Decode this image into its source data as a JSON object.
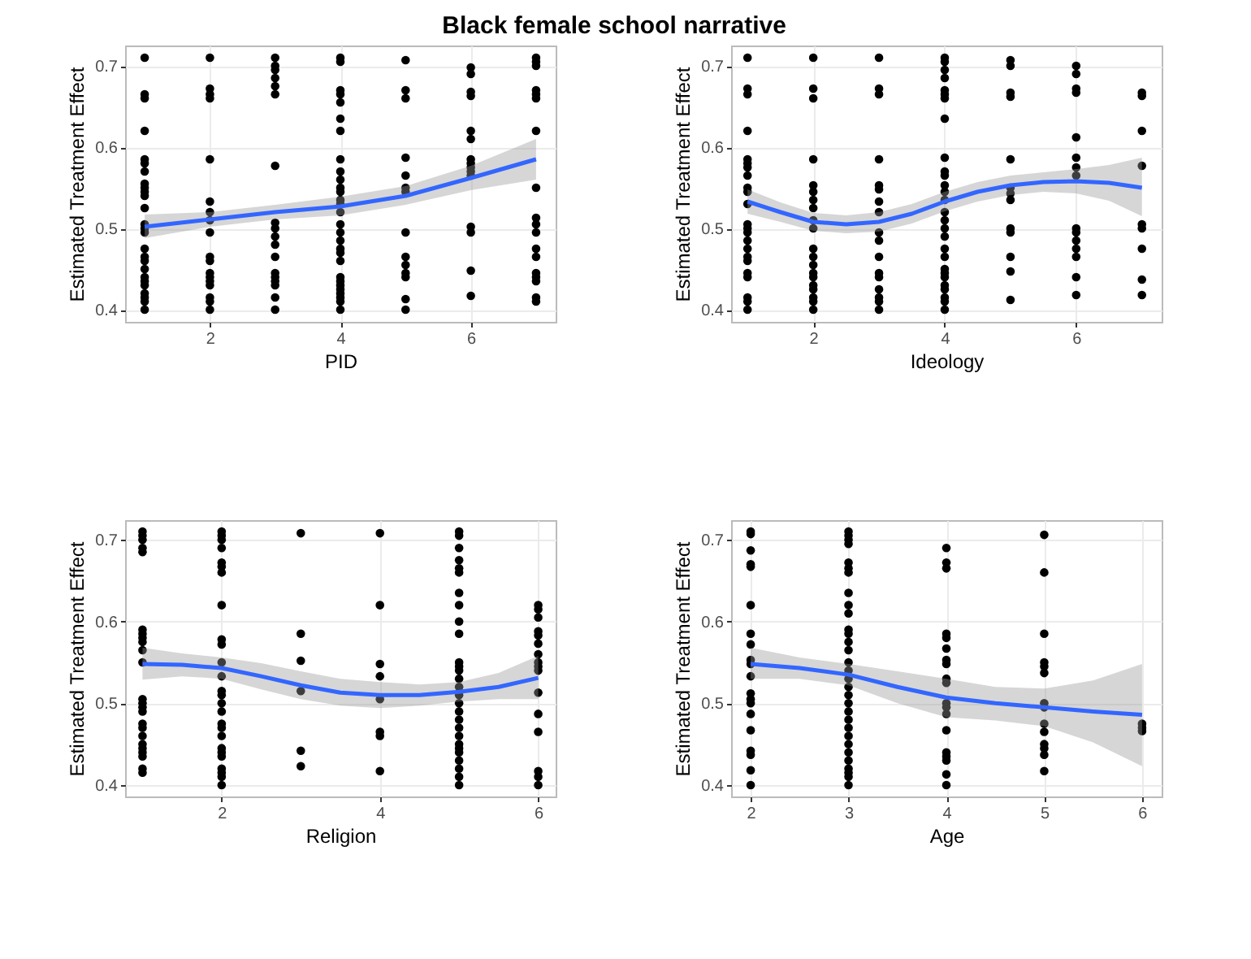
{
  "chart_data": [
    {
      "type": "scatter",
      "title": "Black female school narrative",
      "xlabel": "PID",
      "ylabel": "Estimated Treatment Effect",
      "xlim": [
        0.7,
        7.3
      ],
      "ylim": [
        0.385,
        0.725
      ],
      "xticks": [
        2,
        4,
        6
      ],
      "yticks": [
        0.4,
        0.5,
        0.6,
        0.7
      ],
      "grid": true,
      "series": [
        {
          "color": "#000000",
          "marker": "circle",
          "x": [
            1,
            1,
            1,
            1,
            1,
            1,
            1,
            1,
            1,
            1,
            1,
            1,
            1,
            1,
            1,
            1,
            1,
            1,
            1,
            1,
            1,
            1,
            1,
            1,
            1,
            1,
            2,
            2,
            2,
            2,
            2,
            2,
            2,
            2,
            2,
            2,
            2,
            2,
            2,
            2,
            2,
            2,
            2,
            2,
            3,
            3,
            3,
            3,
            3,
            3,
            3,
            3,
            3,
            3,
            3,
            3,
            3,
            3,
            3,
            3,
            3,
            3,
            4,
            4,
            4,
            4,
            4,
            4,
            4,
            4,
            4,
            4,
            4,
            4,
            4,
            4,
            4,
            4,
            4,
            4,
            4,
            4,
            4,
            4,
            4,
            4,
            4,
            4,
            4,
            4,
            4,
            5,
            5,
            5,
            5,
            5,
            5,
            5,
            5,
            5,
            5,
            5,
            5,
            5,
            5,
            6,
            6,
            6,
            6,
            6,
            6,
            6,
            6,
            6,
            6,
            6,
            6,
            6,
            6,
            6,
            7,
            7,
            7,
            7,
            7,
            7,
            7,
            7,
            7,
            7,
            7,
            7,
            7,
            7,
            7,
            7,
            7,
            7
          ],
          "values": [
            0.71,
            0.665,
            0.66,
            0.62,
            0.585,
            0.58,
            0.57,
            0.555,
            0.55,
            0.545,
            0.54,
            0.525,
            0.505,
            0.5,
            0.495,
            0.475,
            0.465,
            0.46,
            0.45,
            0.44,
            0.435,
            0.43,
            0.42,
            0.415,
            0.41,
            0.4,
            0.71,
            0.672,
            0.665,
            0.66,
            0.585,
            0.533,
            0.52,
            0.51,
            0.495,
            0.465,
            0.46,
            0.445,
            0.44,
            0.435,
            0.43,
            0.415,
            0.41,
            0.4,
            0.71,
            0.7,
            0.695,
            0.685,
            0.675,
            0.665,
            0.577,
            0.507,
            0.5,
            0.49,
            0.48,
            0.465,
            0.445,
            0.44,
            0.435,
            0.43,
            0.415,
            0.4,
            0.71,
            0.705,
            0.67,
            0.665,
            0.655,
            0.635,
            0.62,
            0.585,
            0.57,
            0.56,
            0.55,
            0.545,
            0.535,
            0.53,
            0.52,
            0.505,
            0.495,
            0.485,
            0.475,
            0.47,
            0.46,
            0.44,
            0.435,
            0.43,
            0.425,
            0.42,
            0.415,
            0.41,
            0.4,
            0.707,
            0.67,
            0.66,
            0.587,
            0.565,
            0.55,
            0.545,
            0.495,
            0.465,
            0.455,
            0.445,
            0.44,
            0.413,
            0.4,
            0.698,
            0.69,
            0.668,
            0.663,
            0.62,
            0.61,
            0.585,
            0.58,
            0.575,
            0.57,
            0.565,
            0.502,
            0.495,
            0.448,
            0.417,
            0.71,
            0.705,
            0.7,
            0.67,
            0.665,
            0.66,
            0.62,
            0.55,
            0.513,
            0.505,
            0.495,
            0.475,
            0.465,
            0.445,
            0.44,
            0.435,
            0.415,
            0.41
          ]
        },
        {
          "type": "line",
          "line_style": "solid",
          "color": "#3366ff",
          "x": [
            1,
            2,
            3,
            4,
            5,
            6,
            7
          ],
          "values": [
            0.502,
            0.511,
            0.52,
            0.527,
            0.54,
            0.562,
            0.585
          ],
          "lower": [
            0.488,
            0.502,
            0.511,
            0.516,
            0.529,
            0.547,
            0.56
          ],
          "upper": [
            0.517,
            0.52,
            0.529,
            0.539,
            0.552,
            0.577,
            0.61
          ]
        }
      ]
    },
    {
      "type": "scatter",
      "xlabel": "Ideology",
      "ylabel": "Estimated Treatment Effect",
      "xlim": [
        0.75,
        7.3
      ],
      "ylim": [
        0.385,
        0.725
      ],
      "xticks": [
        2,
        4,
        6
      ],
      "yticks": [
        0.4,
        0.5,
        0.6,
        0.7
      ],
      "grid": true,
      "series": [
        {
          "color": "#000000",
          "marker": "circle",
          "x": [
            1,
            1,
            1,
            1,
            1,
            1,
            1,
            1,
            1,
            1,
            1,
            1,
            1,
            1,
            1,
            1,
            1,
            1,
            1,
            1,
            1,
            1,
            1,
            2,
            2,
            2,
            2,
            2,
            2,
            2,
            2,
            2,
            2,
            2,
            2,
            2,
            2,
            2,
            2,
            2,
            2,
            2,
            2,
            3,
            3,
            3,
            3,
            3,
            3,
            3,
            3,
            3,
            3,
            3,
            3,
            3,
            3,
            3,
            3,
            3,
            4,
            4,
            4,
            4,
            4,
            4,
            4,
            4,
            4,
            4,
            4,
            4,
            4,
            4,
            4,
            4,
            4,
            4,
            4,
            4,
            4,
            4,
            4,
            4,
            4,
            4,
            4,
            4,
            5,
            5,
            5,
            5,
            5,
            5,
            5,
            5,
            5,
            5,
            5,
            5,
            5,
            6,
            6,
            6,
            6,
            6,
            6,
            6,
            6,
            6,
            6,
            6,
            6,
            6,
            6,
            6,
            7,
            7,
            7,
            7,
            7,
            7,
            7,
            7,
            7
          ],
          "values": [
            0.71,
            0.672,
            0.665,
            0.62,
            0.585,
            0.58,
            0.575,
            0.565,
            0.55,
            0.545,
            0.53,
            0.505,
            0.5,
            0.495,
            0.485,
            0.475,
            0.465,
            0.46,
            0.445,
            0.44,
            0.415,
            0.41,
            0.4,
            0.71,
            0.672,
            0.66,
            0.585,
            0.553,
            0.545,
            0.535,
            0.525,
            0.51,
            0.5,
            0.475,
            0.465,
            0.455,
            0.445,
            0.44,
            0.43,
            0.425,
            0.415,
            0.41,
            0.4,
            0.71,
            0.672,
            0.665,
            0.585,
            0.553,
            0.548,
            0.533,
            0.52,
            0.495,
            0.485,
            0.465,
            0.445,
            0.44,
            0.425,
            0.415,
            0.41,
            0.4,
            0.71,
            0.705,
            0.695,
            0.685,
            0.67,
            0.665,
            0.66,
            0.635,
            0.587,
            0.57,
            0.565,
            0.553,
            0.545,
            0.535,
            0.52,
            0.51,
            0.5,
            0.49,
            0.475,
            0.465,
            0.45,
            0.445,
            0.44,
            0.43,
            0.425,
            0.415,
            0.41,
            0.4,
            0.707,
            0.7,
            0.667,
            0.662,
            0.585,
            0.55,
            0.543,
            0.535,
            0.5,
            0.495,
            0.465,
            0.447,
            0.412,
            0.7,
            0.69,
            0.672,
            0.667,
            0.612,
            0.587,
            0.575,
            0.565,
            0.5,
            0.495,
            0.485,
            0.475,
            0.465,
            0.44,
            0.418,
            0.667,
            0.663,
            0.62,
            0.577,
            0.505,
            0.5,
            0.475,
            0.437,
            0.418
          ]
        },
        {
          "type": "line",
          "line_style": "solid",
          "color": "#3366ff",
          "x": [
            1,
            1.5,
            2,
            2.5,
            3,
            3.5,
            4,
            4.5,
            5,
            5.5,
            6,
            6.5,
            7
          ],
          "values": [
            0.533,
            0.52,
            0.508,
            0.505,
            0.508,
            0.518,
            0.533,
            0.545,
            0.553,
            0.557,
            0.558,
            0.556,
            0.55
          ],
          "lower": [
            0.518,
            0.508,
            0.497,
            0.494,
            0.496,
            0.506,
            0.521,
            0.533,
            0.541,
            0.545,
            0.543,
            0.534,
            0.515
          ],
          "upper": [
            0.548,
            0.532,
            0.519,
            0.516,
            0.52,
            0.53,
            0.545,
            0.557,
            0.565,
            0.569,
            0.573,
            0.578,
            0.587
          ]
        }
      ]
    },
    {
      "type": "scatter",
      "xlabel": "Religion",
      "ylabel": "Estimated Treatment Effect",
      "xlim": [
        0.78,
        6.22
      ],
      "ylim": [
        0.386,
        0.724
      ],
      "xticks": [
        2,
        4,
        6
      ],
      "yticks": [
        0.4,
        0.5,
        0.6,
        0.7
      ],
      "grid": true,
      "series": [
        {
          "color": "#000000",
          "marker": "circle",
          "x": [
            1,
            1,
            1,
            1,
            1,
            1,
            1,
            1,
            1,
            1,
            1,
            1,
            1,
            1,
            1,
            1,
            1,
            1,
            1,
            1,
            1,
            1,
            1,
            1,
            2,
            2,
            2,
            2,
            2,
            2,
            2,
            2,
            2,
            2,
            2,
            2,
            2,
            2,
            2,
            2,
            2,
            2,
            2,
            2,
            2,
            2,
            2,
            2,
            2,
            2,
            3,
            3,
            3,
            3,
            3,
            3,
            4,
            4,
            4,
            4,
            4,
            4,
            4,
            4,
            5,
            5,
            5,
            5,
            5,
            5,
            5,
            5,
            5,
            5,
            5,
            5,
            5,
            5,
            5,
            5,
            5,
            5,
            5,
            5,
            5,
            5,
            5,
            5,
            5,
            5,
            5,
            5,
            6,
            6,
            6,
            6,
            6,
            6,
            6,
            6,
            6,
            6,
            6,
            6,
            6,
            6,
            6,
            6
          ],
          "values": [
            0.71,
            0.705,
            0.7,
            0.69,
            0.685,
            0.59,
            0.585,
            0.58,
            0.575,
            0.565,
            0.55,
            0.505,
            0.5,
            0.495,
            0.49,
            0.475,
            0.47,
            0.46,
            0.45,
            0.445,
            0.44,
            0.435,
            0.42,
            0.415,
            0.71,
            0.705,
            0.7,
            0.69,
            0.672,
            0.667,
            0.66,
            0.62,
            0.578,
            0.572,
            0.55,
            0.533,
            0.515,
            0.51,
            0.5,
            0.49,
            0.475,
            0.47,
            0.46,
            0.445,
            0.44,
            0.435,
            0.42,
            0.415,
            0.41,
            0.4,
            0.708,
            0.585,
            0.552,
            0.515,
            0.442,
            0.423,
            0.708,
            0.62,
            0.548,
            0.533,
            0.505,
            0.465,
            0.46,
            0.417,
            0.71,
            0.705,
            0.69,
            0.675,
            0.665,
            0.66,
            0.635,
            0.62,
            0.6,
            0.585,
            0.55,
            0.545,
            0.54,
            0.53,
            0.52,
            0.51,
            0.5,
            0.49,
            0.48,
            0.47,
            0.46,
            0.45,
            0.445,
            0.44,
            0.43,
            0.42,
            0.41,
            0.4,
            0.62,
            0.615,
            0.605,
            0.588,
            0.583,
            0.573,
            0.56,
            0.55,
            0.545,
            0.54,
            0.513,
            0.487,
            0.465,
            0.417,
            0.41,
            0.4
          ]
        },
        {
          "type": "line",
          "line_style": "solid",
          "color": "#3366ff",
          "x": [
            1,
            1.5,
            2,
            2.5,
            3,
            3.5,
            4,
            4.5,
            5,
            5.5,
            6
          ],
          "values": [
            0.548,
            0.547,
            0.543,
            0.533,
            0.522,
            0.513,
            0.51,
            0.51,
            0.514,
            0.52,
            0.531
          ],
          "lower": [
            0.529,
            0.533,
            0.53,
            0.517,
            0.505,
            0.497,
            0.494,
            0.497,
            0.502,
            0.505,
            0.505
          ],
          "upper": [
            0.568,
            0.561,
            0.556,
            0.549,
            0.539,
            0.53,
            0.526,
            0.523,
            0.526,
            0.537,
            0.558
          ]
        }
      ]
    },
    {
      "type": "scatter",
      "xlabel": "Age",
      "ylabel": "Estimated Treatment Effect",
      "xlim": [
        1.8,
        6.2
      ],
      "ylim": [
        0.386,
        0.724
      ],
      "xticks": [
        2,
        3,
        4,
        5,
        6
      ],
      "yticks": [
        0.4,
        0.5,
        0.6,
        0.7
      ],
      "grid": true,
      "series": [
        {
          "color": "#000000",
          "marker": "circle",
          "x": [
            2,
            2,
            2,
            2,
            2,
            2,
            2,
            2,
            2,
            2,
            2,
            2,
            2,
            2,
            2,
            2,
            2,
            2,
            2,
            2,
            3,
            3,
            3,
            3,
            3,
            3,
            3,
            3,
            3,
            3,
            3,
            3,
            3,
            3,
            3,
            3,
            3,
            3,
            3,
            3,
            3,
            3,
            3,
            3,
            3,
            3,
            3,
            3,
            3,
            3,
            3,
            4,
            4,
            4,
            4,
            4,
            4,
            4,
            4,
            4,
            4,
            4,
            4,
            4,
            4,
            4,
            4,
            4,
            4,
            4,
            5,
            5,
            5,
            5,
            5,
            5,
            5,
            5,
            5,
            5,
            5,
            5,
            5,
            5,
            6,
            6,
            6
          ],
          "values": [
            0.71,
            0.707,
            0.687,
            0.67,
            0.667,
            0.62,
            0.585,
            0.572,
            0.553,
            0.548,
            0.533,
            0.512,
            0.505,
            0.5,
            0.487,
            0.467,
            0.442,
            0.437,
            0.418,
            0.4,
            0.71,
            0.705,
            0.7,
            0.695,
            0.672,
            0.665,
            0.66,
            0.635,
            0.62,
            0.61,
            0.59,
            0.585,
            0.575,
            0.565,
            0.55,
            0.54,
            0.53,
            0.52,
            0.51,
            0.5,
            0.49,
            0.48,
            0.47,
            0.46,
            0.45,
            0.44,
            0.43,
            0.42,
            0.415,
            0.41,
            0.4,
            0.69,
            0.672,
            0.665,
            0.585,
            0.58,
            0.567,
            0.553,
            0.548,
            0.53,
            0.525,
            0.5,
            0.495,
            0.487,
            0.467,
            0.44,
            0.435,
            0.43,
            0.413,
            0.4,
            0.706,
            0.66,
            0.585,
            0.55,
            0.545,
            0.537,
            0.5,
            0.495,
            0.475,
            0.465,
            0.45,
            0.445,
            0.437,
            0.417,
            0.475,
            0.47,
            0.466
          ]
        },
        {
          "type": "line",
          "line_style": "solid",
          "color": "#3366ff",
          "x": [
            2,
            2.5,
            3,
            3.5,
            4,
            4.5,
            5,
            5.5,
            6
          ],
          "values": [
            0.548,
            0.543,
            0.535,
            0.52,
            0.507,
            0.5,
            0.495,
            0.49,
            0.486
          ],
          "lower": [
            0.53,
            0.53,
            0.522,
            0.5,
            0.483,
            0.479,
            0.472,
            0.452,
            0.423
          ],
          "upper": [
            0.568,
            0.556,
            0.548,
            0.539,
            0.53,
            0.52,
            0.518,
            0.528,
            0.548
          ]
        }
      ]
    }
  ]
}
